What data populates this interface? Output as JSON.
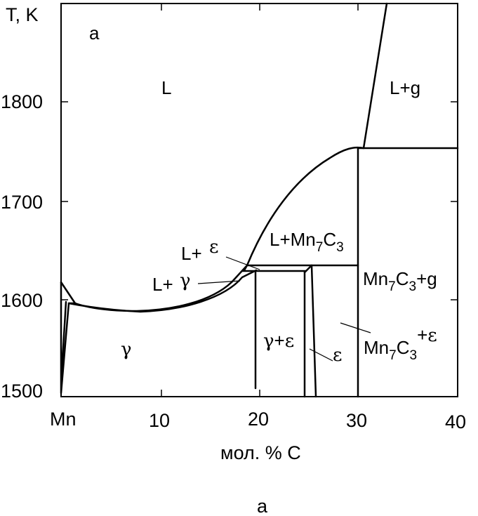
{
  "axes": {
    "y_title": "T, K",
    "x_title": "мол. % C",
    "x_ticks": [
      "Mn",
      "10",
      "20",
      "30",
      "40"
    ],
    "y_ticks": [
      "1800",
      "1700",
      "1600",
      "1500"
    ]
  },
  "panel_tag": "a",
  "caption": "a",
  "phases": {
    "liquid": "L",
    "liquid_g": "L+g",
    "liquid_eps_prefix": "L+",
    "liquid_eps_greek": "ε",
    "liquid_gamma_prefix": "L+",
    "liquid_gamma_greek": "γ",
    "liquid_mn7c3_a": "L+Mn",
    "liquid_mn7c3_b": "7",
    "liquid_mn7c3_c": "C",
    "liquid_mn7c3_d": "3",
    "gamma": "γ",
    "gamma_eps_a": "γ",
    "gamma_eps_b": "+",
    "gamma_eps_c": "ε",
    "eps": "ε",
    "mn7c3_g_a": "Mn",
    "mn7c3_g_b": "7",
    "mn7c3_g_c": "C",
    "mn7c3_g_d": "3",
    "mn7c3_g_e": "+g",
    "mn7c3_eps_a": "Mn",
    "mn7c3_eps_b": "7",
    "mn7c3_eps_c": "C",
    "mn7c3_eps_d": "3",
    "mn7c3_eps_e": "+",
    "mn7c3_eps_f": "ε"
  }
}
